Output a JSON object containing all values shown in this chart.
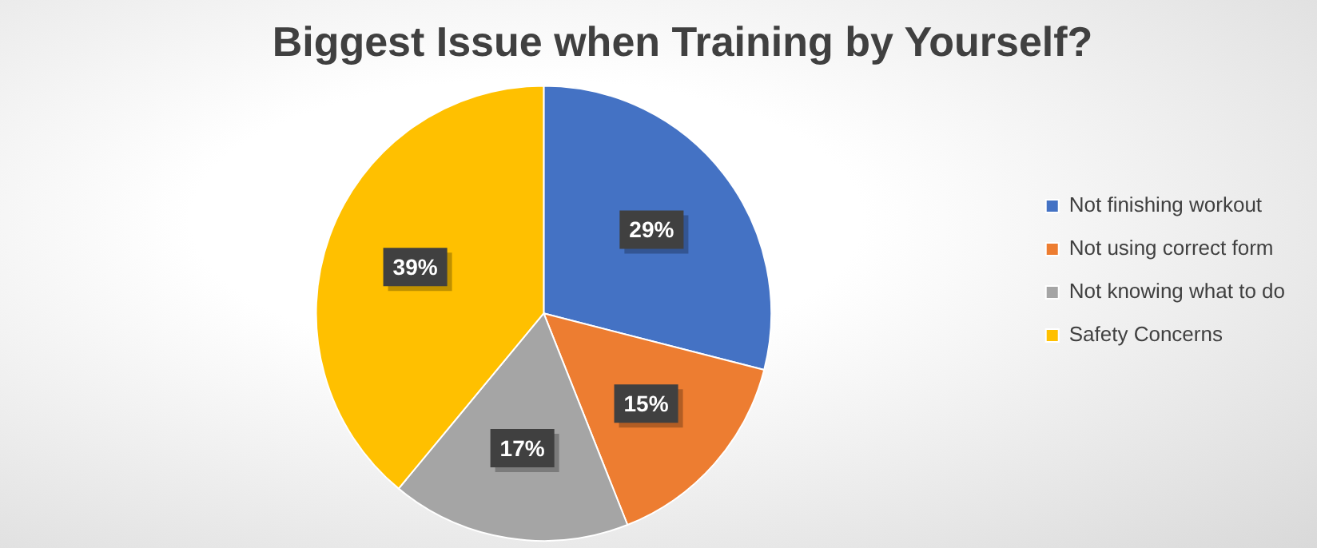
{
  "chart_data": {
    "type": "pie",
    "title": "Biggest Issue when Training by Yourself?",
    "categories": [
      "Not finishing workout",
      "Not using correct form",
      "Not knowing what to do",
      "Safety Concerns"
    ],
    "values": [
      29,
      15,
      17,
      39
    ],
    "value_labels": [
      "29%",
      "15%",
      "17%",
      "39%"
    ],
    "colors": [
      "#4472c4",
      "#ed7d31",
      "#a5a5a5",
      "#ffc000"
    ],
    "legend": "right"
  }
}
